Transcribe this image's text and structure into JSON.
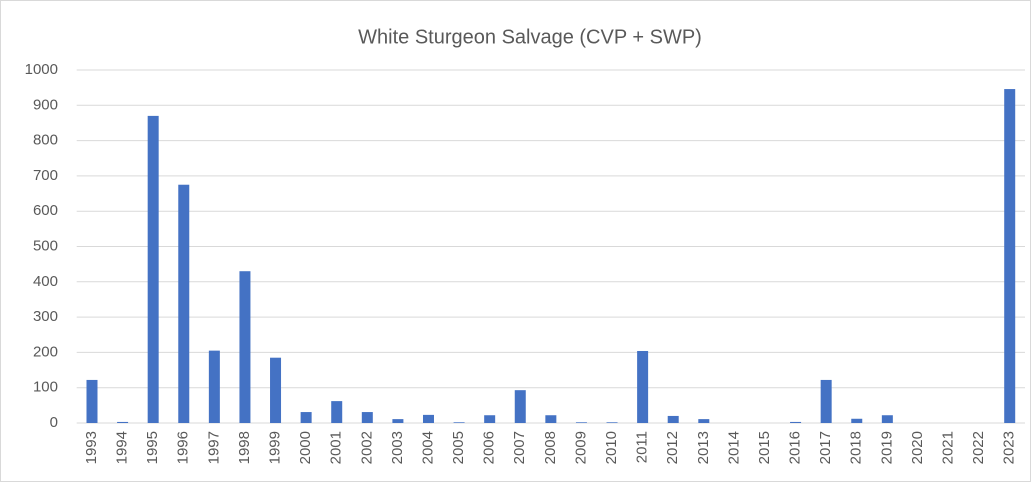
{
  "chart_data": {
    "type": "bar",
    "title": "White Sturgeon Salvage (CVP + SWP)",
    "categories": [
      "1993",
      "1994",
      "1995",
      "1996",
      "1997",
      "1998",
      "1999",
      "2000",
      "2001",
      "2002",
      "2003",
      "2004",
      "2005",
      "2006",
      "2007",
      "2008",
      "2009",
      "2010",
      "2011",
      "2012",
      "2013",
      "2014",
      "2015",
      "2016",
      "2017",
      "2018",
      "2019",
      "2020",
      "2021",
      "2022",
      "2023"
    ],
    "values": [
      122,
      3,
      870,
      675,
      205,
      430,
      185,
      31,
      62,
      31,
      11,
      23,
      2,
      22,
      93,
      22,
      2,
      2,
      204,
      20,
      11,
      0,
      0,
      3,
      122,
      12,
      22,
      0,
      0,
      0,
      946
    ],
    "color": "#4472c4",
    "ylim": [
      0,
      1000
    ],
    "yticks": [
      0,
      100,
      200,
      300,
      400,
      500,
      600,
      700,
      800,
      900,
      1000
    ],
    "grid": true
  }
}
